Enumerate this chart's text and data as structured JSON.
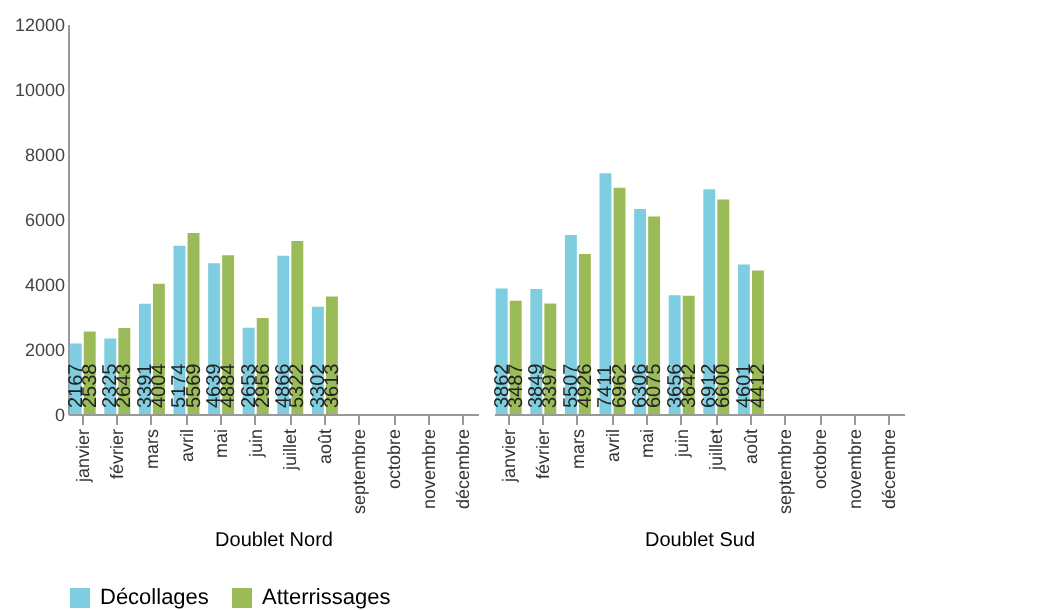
{
  "chart_data": [
    {
      "type": "bar",
      "xlabel": "Doublet Nord",
      "categories": [
        "janvier",
        "février",
        "mars",
        "avril",
        "mai",
        "juin",
        "juillet",
        "août",
        "septembre",
        "octobre",
        "novembre",
        "décembre"
      ],
      "ylim": [
        0,
        12000
      ],
      "yticks": [
        0,
        2000,
        4000,
        6000,
        8000,
        10000,
        12000
      ],
      "data_labels": true,
      "legend": "bottom",
      "series": [
        {
          "name": "Décollages",
          "color": "#7fcde0",
          "values": [
            2167,
            2325,
            3391,
            5174,
            4639,
            2653,
            4866,
            3302,
            null,
            null,
            null,
            null
          ]
        },
        {
          "name": "Atterrissages",
          "color": "#9bbb59",
          "values": [
            2538,
            2643,
            4004,
            5569,
            4884,
            2956,
            5322,
            3613,
            null,
            null,
            null,
            null
          ]
        }
      ]
    },
    {
      "type": "bar",
      "xlabel": "Doublet Sud",
      "categories": [
        "janvier",
        "février",
        "mars",
        "avril",
        "mai",
        "juin",
        "juillet",
        "août",
        "septembre",
        "octobre",
        "novembre",
        "décembre"
      ],
      "ylim": [
        0,
        12000
      ],
      "tick_labels": "x",
      "data_labels": true,
      "legend": "bottom",
      "series": [
        {
          "name": "Décollages",
          "color": "#7fcde0",
          "values": [
            3862,
            3849,
            5507,
            7411,
            6306,
            3656,
            6912,
            4601,
            null,
            null,
            null,
            null
          ]
        },
        {
          "name": "Atterrissages",
          "color": "#9bbb59",
          "values": [
            3487,
            3397,
            4926,
            6962,
            6075,
            3642,
            6600,
            4412,
            null,
            null,
            null,
            null
          ]
        }
      ]
    }
  ]
}
